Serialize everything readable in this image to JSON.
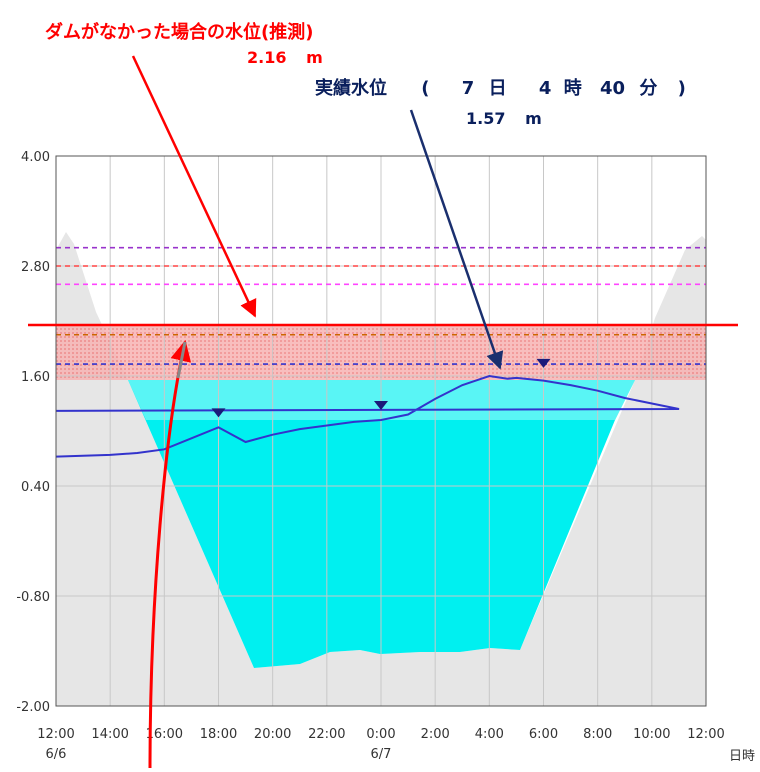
{
  "chart_data": {
    "type": "line",
    "xlabel": "日時",
    "ylim": [
      -2.0,
      4.0
    ],
    "x_ticks": [
      "12:00",
      "14:00",
      "16:00",
      "18:00",
      "20:00",
      "22:00",
      "0:00",
      "2:00",
      "4:00",
      "6:00",
      "8:00",
      "10:00",
      "12:00"
    ],
    "x_date_labels": [
      {
        "at": "12:00",
        "label": "6/6"
      },
      {
        "at": "0:00",
        "label": "6/7"
      }
    ],
    "y_ticks": [
      "4.00",
      "2.80",
      "1.60",
      "0.40",
      "-0.80",
      "-2.00"
    ],
    "grid": true,
    "series": [
      {
        "color": "#3333cc",
        "x": [
          "12:00",
          "14:00",
          "15:00",
          "16:00",
          "17:00",
          "18:00",
          "19:00",
          "20:00",
          "21:00",
          "22:00",
          "23:00",
          "0:00",
          "1:00",
          "2:00",
          "3:00",
          "4:00",
          "4:40",
          "5:00",
          "6:00",
          "7:00",
          "8:00",
          "9:00",
          "10:00",
          "11:00",
          "12:00"
        ],
        "values": [
          0.72,
          0.74,
          0.76,
          0.8,
          0.92,
          1.04,
          0.88,
          0.96,
          1.02,
          1.06,
          1.1,
          1.12,
          1.18,
          1.35,
          1.5,
          1.6,
          1.57,
          1.58,
          1.55,
          1.5,
          1.44,
          1.36,
          1.3,
          1.24,
          1.22
        ]
      }
    ],
    "reference_lines": [
      {
        "value": 3.0,
        "color": "#9933cc",
        "style": "dashed"
      },
      {
        "value": 2.8,
        "color": "#ff4444",
        "style": "dashed"
      },
      {
        "value": 2.6,
        "color": "#ff44ff",
        "style": "dashed"
      },
      {
        "value": 2.16,
        "color": "#ff0000",
        "style": "solid"
      },
      {
        "value": 2.05,
        "color": "#cc6600",
        "style": "dashed"
      },
      {
        "value": 1.73,
        "color": "#3333cc",
        "style": "dashed"
      }
    ],
    "annotations": {
      "no_dam_label": "ダムがなかった場合の水位(推測)",
      "no_dam_value": "2.16",
      "no_dam_unit": "m",
      "actual_label": "実績水位",
      "actual_time_open": "(",
      "actual_day": "7",
      "actual_day_unit": "日",
      "actual_hour": "4",
      "actual_hour_unit": "時",
      "actual_min": "40",
      "actual_min_unit": "分",
      "actual_time_close": ")",
      "actual_value": "1.57",
      "actual_unit": "m"
    },
    "colors": {
      "channel_fill": "#00f0f0",
      "bank_fill": "#e6e6e6",
      "band_fill": "#f5a0a0",
      "actual_line": "#3333cc",
      "predicted_line": "#ff0000",
      "arrow_red": "#ff0000",
      "arrow_navy": "#1a2f6e"
    }
  }
}
